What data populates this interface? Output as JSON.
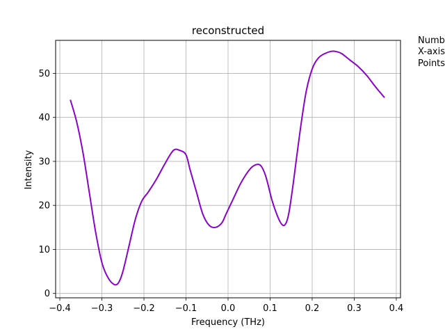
{
  "chart_data": {
    "type": "line",
    "title": "reconstructed",
    "xlabel": "Frequency (THz)",
    "ylabel": "Intensity",
    "xlim": [
      -0.41,
      0.41
    ],
    "ylim": [
      -1,
      57.5
    ],
    "grid": true,
    "x_ticks": [
      {
        "value": -0.4,
        "label": "−0.4"
      },
      {
        "value": -0.3,
        "label": "−0.3"
      },
      {
        "value": -0.2,
        "label": "−0.2"
      },
      {
        "value": -0.1,
        "label": "−0.1"
      },
      {
        "value": 0.0,
        "label": "0.0"
      },
      {
        "value": 0.1,
        "label": "0.1"
      },
      {
        "value": 0.2,
        "label": "0.2"
      },
      {
        "value": 0.3,
        "label": "0.3"
      },
      {
        "value": 0.4,
        "label": "0.4"
      }
    ],
    "y_ticks": [
      {
        "value": 0,
        "label": "0"
      },
      {
        "value": 10,
        "label": "10"
      },
      {
        "value": 20,
        "label": "20"
      },
      {
        "value": 30,
        "label": "30"
      },
      {
        "value": 40,
        "label": "40"
      },
      {
        "value": 50,
        "label": "50"
      }
    ],
    "series": [
      {
        "color": "#8b00cc",
        "x": [
          -0.375,
          -0.36,
          -0.345,
          -0.33,
          -0.315,
          -0.3,
          -0.285,
          -0.27,
          -0.26,
          -0.25,
          -0.235,
          -0.22,
          -0.205,
          -0.19,
          -0.17,
          -0.15,
          -0.13,
          -0.115,
          -0.1,
          -0.09,
          -0.075,
          -0.06,
          -0.045,
          -0.03,
          -0.015,
          -0.005,
          0.01,
          0.03,
          0.05,
          0.065,
          0.078,
          0.09,
          0.105,
          0.12,
          0.13,
          0.138,
          0.145,
          0.155,
          0.17,
          0.185,
          0.2,
          0.215,
          0.23,
          0.245,
          0.255,
          0.27,
          0.29,
          0.31,
          0.33,
          0.35,
          0.372
        ],
        "y": [
          44,
          39,
          32,
          23,
          14,
          7,
          3.5,
          2,
          2.5,
          5,
          11,
          17,
          21,
          23,
          26,
          29.5,
          32.5,
          32.5,
          31.5,
          28,
          23,
          18,
          15.5,
          15,
          16,
          18,
          21,
          25,
          28,
          29.2,
          29,
          26.5,
          21,
          17,
          15.5,
          16,
          18.5,
          25,
          36,
          45.5,
          51,
          53.5,
          54.5,
          55,
          55,
          54.5,
          53,
          51.5,
          49.5,
          47,
          44.5
        ]
      }
    ]
  },
  "side_note": {
    "lines": [
      "Numb",
      "X-axis",
      "Points"
    ]
  }
}
